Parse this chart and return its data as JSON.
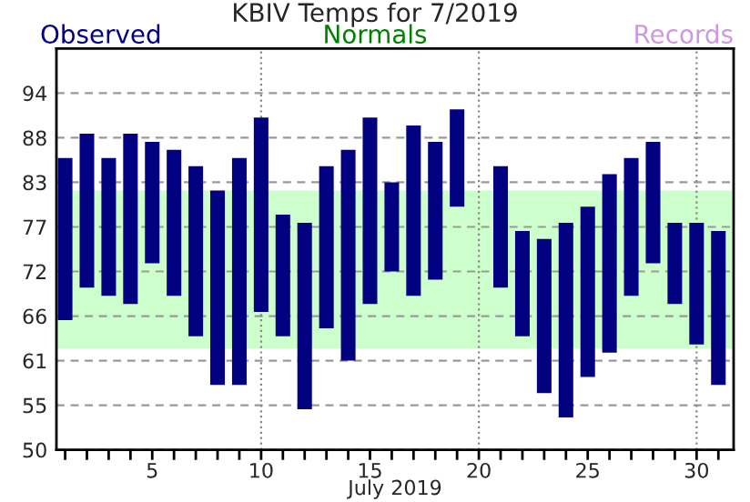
{
  "chart_data": {
    "type": "bar",
    "title": "KBIV Temps for 7/2019",
    "xlabel": "July 2019",
    "x": [
      1,
      2,
      3,
      4,
      5,
      6,
      7,
      8,
      9,
      10,
      11,
      12,
      13,
      14,
      15,
      16,
      17,
      18,
      19,
      20,
      21,
      22,
      23,
      24,
      25,
      26,
      27,
      28,
      29,
      30,
      31
    ],
    "series": [
      {
        "name": "Observed",
        "color": "#000080",
        "base": [
          66,
          70,
          69,
          68,
          73,
          69,
          64,
          58,
          58,
          67,
          64,
          55,
          65,
          61,
          68,
          72,
          69,
          71,
          80,
          null,
          70,
          64,
          57,
          54,
          59,
          62,
          69,
          73,
          68,
          63,
          58
        ],
        "values": [
          20,
          19,
          17,
          21,
          15,
          18,
          21,
          24,
          28,
          24,
          15,
          23,
          20,
          26,
          23,
          11,
          21,
          17,
          12,
          null,
          15,
          13,
          19,
          24,
          21,
          22,
          17,
          15,
          10,
          15,
          19
        ]
      }
    ],
    "bands": [
      {
        "axis": "y",
        "from": 62.5,
        "to": 82,
        "color": "#ccffcc"
      }
    ],
    "ref_lines": [
      {
        "axis": "x",
        "value": 10,
        "line_style": "dotted",
        "color": "#888888"
      },
      {
        "axis": "x",
        "value": 20,
        "line_style": "dotted",
        "color": "#888888"
      },
      {
        "axis": "x",
        "value": 30,
        "line_style": "dotted",
        "color": "#888888"
      }
    ],
    "annotations": [
      "Normals",
      "Records"
    ],
    "xlim": [
      0.6,
      31.7
    ],
    "xticks": [
      {
        "value": 1,
        "label": null
      },
      {
        "value": 2,
        "label": null
      },
      {
        "value": 3,
        "label": null
      },
      {
        "value": 4,
        "label": null
      },
      5,
      {
        "value": 6,
        "label": null
      },
      {
        "value": 7,
        "label": null
      },
      {
        "value": 8,
        "label": null
      },
      {
        "value": 9,
        "label": null
      },
      10,
      {
        "value": 11,
        "label": null
      },
      {
        "value": 12,
        "label": null
      },
      {
        "value": 13,
        "label": null
      },
      {
        "value": 14,
        "label": null
      },
      15,
      {
        "value": 16,
        "label": null
      },
      {
        "value": 17,
        "label": null
      },
      {
        "value": 18,
        "label": null
      },
      {
        "value": 19,
        "label": null
      },
      20,
      {
        "value": 21,
        "label": null
      },
      {
        "value": 22,
        "label": null
      },
      {
        "value": 23,
        "label": null
      },
      {
        "value": 24,
        "label": null
      },
      25,
      {
        "value": 26,
        "label": null
      },
      {
        "value": 27,
        "label": null
      },
      {
        "value": 28,
        "label": null
      },
      {
        "value": 29,
        "label": null
      },
      30,
      {
        "value": 31,
        "label": null
      }
    ],
    "ylim": [
      50,
      99.5
    ],
    "yticks": [
      50,
      {
        "value": 55.5,
        "label": "55"
      },
      61,
      {
        "value": 66.5,
        "label": "66"
      },
      72,
      {
        "value": 77.5,
        "label": "77"
      },
      83,
      {
        "value": 88.5,
        "label": "88"
      },
      94
    ],
    "grid": "y",
    "legend": "top left"
  }
}
